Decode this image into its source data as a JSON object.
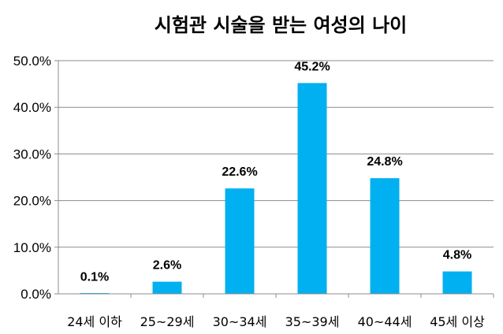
{
  "chart_data": {
    "type": "bar",
    "title": "시험관 시술을 받는 여성의 나이",
    "categories": [
      "24세 이하",
      "25~29세",
      "30~34세",
      "35~39세",
      "40~44세",
      "45세 이상"
    ],
    "values": [
      0.1,
      2.6,
      22.6,
      45.2,
      24.8,
      4.8
    ],
    "data_labels": [
      "0.1%",
      "2.6%",
      "22.6%",
      "45.2%",
      "24.8%",
      "4.8%"
    ],
    "ylim": [
      0,
      50
    ],
    "yticks": [
      0,
      10,
      20,
      30,
      40,
      50
    ],
    "ytick_labels": [
      "0.0%",
      "10.0%",
      "20.0%",
      "30.0%",
      "40.0%",
      "50.0%"
    ],
    "grid": "horizontal",
    "legend": "none",
    "bar_color": "#00B0F0",
    "grid_color": "#8C8C8C"
  }
}
